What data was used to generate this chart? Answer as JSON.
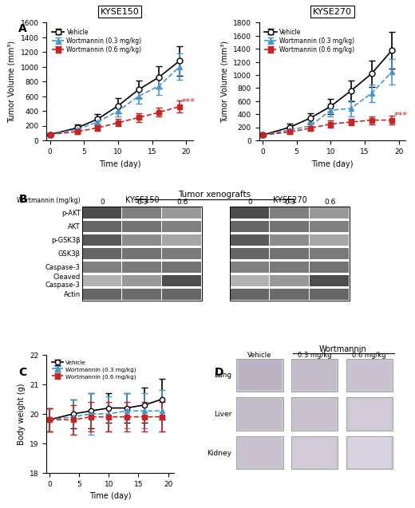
{
  "panel_A": {
    "KYSE150": {
      "title": "KYSE150",
      "days": [
        0,
        4,
        7,
        10,
        13,
        16,
        19
      ],
      "vehicle_mean": [
        80,
        170,
        290,
        470,
        690,
        860,
        1080
      ],
      "vehicle_err": [
        20,
        50,
        70,
        100,
        120,
        150,
        200
      ],
      "wort03_mean": [
        80,
        150,
        250,
        400,
        600,
        740,
        1000
      ],
      "wort03_err": [
        20,
        40,
        60,
        80,
        100,
        120,
        180
      ],
      "wort06_mean": [
        80,
        120,
        170,
        240,
        310,
        380,
        460
      ],
      "wort06_err": [
        15,
        30,
        40,
        50,
        60,
        60,
        80
      ],
      "ylim": [
        0,
        1600
      ],
      "yticks": [
        0,
        200,
        400,
        600,
        800,
        1000,
        1200,
        1400,
        1600
      ],
      "ylabel": "Tumor Volume (mm³)"
    },
    "KYSE270": {
      "title": "KYSE270",
      "days": [
        0,
        4,
        7,
        10,
        13,
        16,
        19
      ],
      "vehicle_mean": [
        80,
        200,
        340,
        520,
        760,
        1020,
        1380
      ],
      "vehicle_err": [
        20,
        60,
        80,
        120,
        160,
        200,
        280
      ],
      "wort03_mean": [
        80,
        160,
        220,
        460,
        490,
        720,
        1050
      ],
      "wort03_err": [
        20,
        50,
        60,
        100,
        120,
        140,
        200
      ],
      "wort06_mean": [
        80,
        130,
        185,
        250,
        280,
        310,
        310
      ],
      "wort06_err": [
        15,
        30,
        40,
        50,
        50,
        60,
        70
      ],
      "ylim": [
        0,
        1800
      ],
      "yticks": [
        0,
        200,
        400,
        600,
        800,
        1000,
        1200,
        1400,
        1600,
        1800
      ],
      "ylabel": "Tumor Volume (mm³)"
    }
  },
  "panel_C": {
    "days": [
      0,
      4,
      7,
      10,
      13,
      16,
      19
    ],
    "vehicle_mean": [
      19.8,
      20.0,
      20.1,
      20.2,
      20.2,
      20.3,
      20.5
    ],
    "vehicle_err": [
      0.4,
      0.5,
      0.6,
      0.5,
      0.5,
      0.6,
      0.7
    ],
    "wort03_mean": [
      19.8,
      19.9,
      20.0,
      20.0,
      20.1,
      20.1,
      20.1
    ],
    "wort03_err": [
      0.4,
      0.6,
      0.7,
      0.6,
      0.6,
      0.6,
      0.7
    ],
    "wort06_mean": [
      19.8,
      19.8,
      19.9,
      19.9,
      19.9,
      19.9,
      19.9
    ],
    "wort06_err": [
      0.4,
      0.5,
      0.5,
      0.5,
      0.5,
      0.5,
      0.5
    ],
    "ylim": [
      18,
      22
    ],
    "yticks": [
      18,
      19,
      20,
      21,
      22
    ],
    "ylabel": "Body weight (g)"
  },
  "colors": {
    "vehicle": "#000000",
    "wort03": "#4499cc",
    "wort06": "#cc2222"
  },
  "legend_labels": [
    "Vehicle",
    "Wortmannin (0.3 mg/kg)",
    "Wortmannin (0.6 mg/kg)"
  ],
  "xlabel": "Time (day)",
  "panel_B_labels": [
    "p-AKT",
    "AKT",
    "p-GSK3β",
    "GSK3β",
    "Caspase-3",
    "Cleaved\nCaspase-3",
    "Actin"
  ],
  "panel_B_header": "Tumor xenografts",
  "panel_B_kyse150": "KYSE150",
  "panel_B_kyse270": "KYSE270",
  "panel_B_wort_label": "Wortmannin (mg/kg)",
  "panel_B_concentrations": [
    "0",
    "0.3",
    "0.6"
  ],
  "panel_D_header": "Wortmannin",
  "panel_D_col_labels": [
    "Vehicle",
    "0.3 mg/kg",
    "0.6 mg/kg"
  ],
  "panel_D_row_labels": [
    "Lung",
    "Liver",
    "Kidney"
  ]
}
